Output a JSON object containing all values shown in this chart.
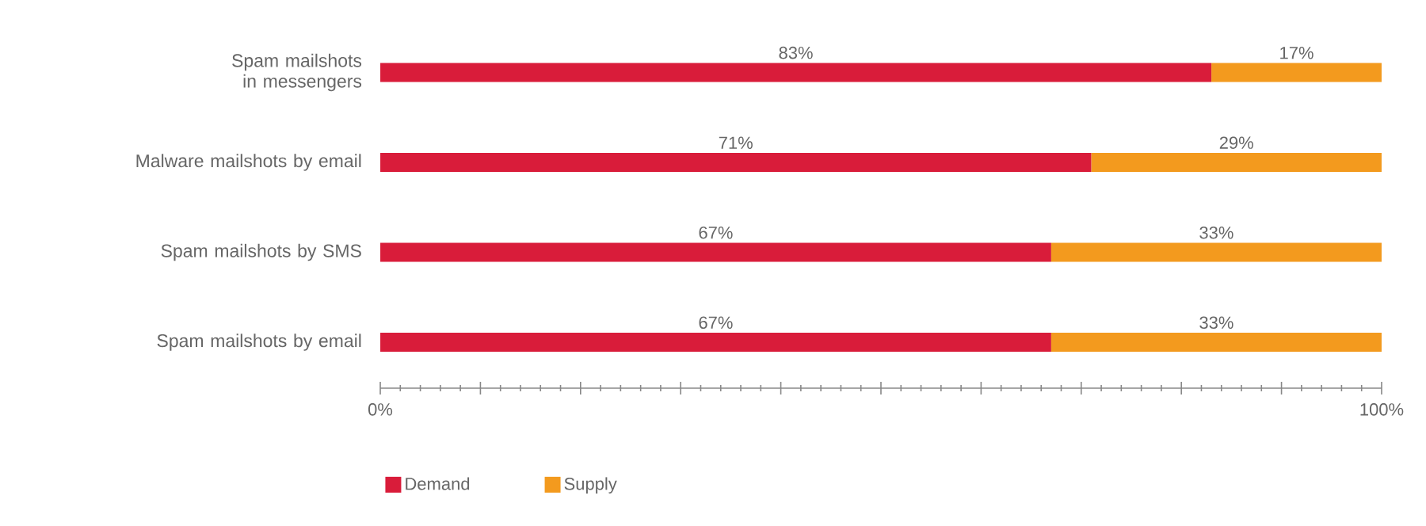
{
  "chart_data": {
    "type": "bar",
    "orientation": "horizontal",
    "stacked": true,
    "categories": [
      "Spam mailshots in messengers",
      "Malware mailshots by email",
      "Spam mailshots by SMS",
      "Spam mailshots by email"
    ],
    "series": [
      {
        "name": "Demand",
        "color": "#d91c3a",
        "values": [
          83,
          71,
          67,
          67
        ],
        "value_labels": [
          "83%",
          "71%",
          "67%",
          "67%"
        ]
      },
      {
        "name": "Supply",
        "color": "#f39a1e",
        "values": [
          17,
          29,
          33,
          33
        ],
        "value_labels": [
          "17%",
          "29%",
          "33%",
          "33%"
        ]
      }
    ],
    "xlim": [
      0,
      100
    ],
    "xticks": [
      {
        "value": 0,
        "label": "0%"
      },
      {
        "value": 10,
        "label": null
      },
      {
        "value": 20,
        "label": null
      },
      {
        "value": 30,
        "label": null
      },
      {
        "value": 40,
        "label": null
      },
      {
        "value": 50,
        "label": null
      },
      {
        "value": 60,
        "label": null
      },
      {
        "value": 70,
        "label": null
      },
      {
        "value": 80,
        "label": null
      },
      {
        "value": 90,
        "label": null
      },
      {
        "value": 100,
        "label": "100%"
      }
    ],
    "grid": false,
    "legend": "bottom left"
  }
}
